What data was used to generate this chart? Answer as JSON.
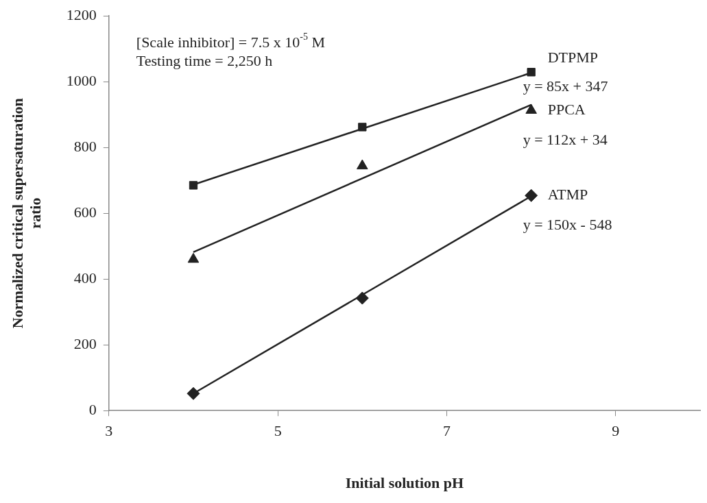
{
  "chart_data": {
    "type": "scatter",
    "xlabel": "Initial solution pH",
    "ylabel": "Normalized critical supersaturation ratio",
    "xlim": [
      3,
      10
    ],
    "xticks": [
      3,
      5,
      7,
      9
    ],
    "ylim": [
      0,
      1200
    ],
    "yticks": [
      0,
      200,
      400,
      600,
      800,
      1000,
      1200
    ],
    "grid": false,
    "legend": false,
    "series": [
      {
        "name": "DTPMP",
        "color": "#222222",
        "marker": "square",
        "x": [
          4,
          6,
          8
        ],
        "values": [
          685,
          862,
          1029
        ]
      },
      {
        "name": "PPCA",
        "color": "#222222",
        "marker": "triangle",
        "x": [
          4,
          6,
          8
        ],
        "values": [
          460,
          744,
          913
        ]
      },
      {
        "name": "ATMP",
        "color": "#222222",
        "marker": "diamond",
        "x": [
          4,
          6,
          8
        ],
        "values": [
          52,
          342,
          654
        ]
      },
      {
        "type": "line",
        "color": "#222222",
        "marker": "none",
        "x": [
          4,
          8
        ],
        "values": [
          687,
          1027
        ]
      },
      {
        "type": "line",
        "color": "#222222",
        "marker": "none",
        "x": [
          4,
          8
        ],
        "values": [
          482,
          930
        ]
      },
      {
        "type": "line",
        "color": "#222222",
        "marker": "none",
        "x": [
          4,
          8
        ],
        "values": [
          52,
          652
        ]
      }
    ],
    "annotations": [
      "[Scale inhibitor] = 7.5 x 10$^{-5}$ M",
      "Testing time = 2,250 h",
      "y = 85x + 347",
      "y = 112x + 34",
      "y = 150x - 548"
    ]
  }
}
